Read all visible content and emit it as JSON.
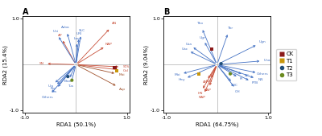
{
  "chart_data": [
    {
      "type": "scatter",
      "title": "A",
      "x_label": "RDA1 (50.1%)",
      "y_label": "RDA2 (15.4%)",
      "xlim": [
        -1.05,
        1.05
      ],
      "ylim": [
        -1.05,
        1.05
      ],
      "xticks": [
        -1.0,
        1.0
      ],
      "yticks": [
        -1.0,
        1.0
      ],
      "arrows": [
        {
          "label": "AN",
          "x": 0.68,
          "y": 0.8,
          "color": "#c8503a"
        },
        {
          "label": "AP",
          "x": -0.28,
          "y": 0.56,
          "color": "#c8503a"
        },
        {
          "label": "NAP",
          "x": 0.58,
          "y": 0.4,
          "color": "#c8503a"
        },
        {
          "label": "SN",
          "x": -0.6,
          "y": 0.02,
          "color": "#c8503a"
        },
        {
          "label": "STS",
          "x": 0.88,
          "y": -0.05,
          "color": "#c8503a"
        },
        {
          "label": "Cal",
          "x": 0.88,
          "y": -0.12,
          "color": "#c8503a"
        },
        {
          "label": "Moi",
          "x": 0.8,
          "y": -0.2,
          "color": "#a0522d"
        },
        {
          "label": "Asp",
          "x": 0.82,
          "y": -0.48,
          "color": "#a0522d"
        },
        {
          "label": "Acba",
          "x": -0.18,
          "y": 0.72,
          "color": "#4472c4"
        },
        {
          "label": "Uni",
          "x": -0.36,
          "y": 0.64,
          "color": "#4472c4"
        },
        {
          "label": "SLC",
          "x": 0.1,
          "y": 0.66,
          "color": "#4472c4"
        },
        {
          "label": "URI",
          "x": 0.06,
          "y": 0.6,
          "color": "#4472c4"
        },
        {
          "label": "Lac",
          "x": 0.02,
          "y": 0.5,
          "color": "#4472c4"
        },
        {
          "label": "Elas",
          "x": -0.14,
          "y": -0.32,
          "color": "#4472c4"
        },
        {
          "label": "Tus",
          "x": -0.1,
          "y": -0.42,
          "color": "#4472c4"
        },
        {
          "label": "Pro",
          "x": -0.4,
          "y": -0.46,
          "color": "#4472c4"
        },
        {
          "label": "Ula",
          "x": -0.44,
          "y": -0.42,
          "color": "#4472c4"
        },
        {
          "label": "Cla",
          "x": -0.38,
          "y": -0.52,
          "color": "#4472c4"
        },
        {
          "label": "Others",
          "x": -0.5,
          "y": -0.64,
          "color": "#4472c4"
        }
      ],
      "series": [
        {
          "name": "CK",
          "x": [
            0.76
          ],
          "y": [
            -0.07
          ],
          "color": "#8b1a1a",
          "marker": "square"
        },
        {
          "name": "T1",
          "x": [
            0.8
          ],
          "y": [
            -0.13
          ],
          "color": "#c8960c",
          "marker": "square"
        },
        {
          "name": "T2",
          "x": [
            -0.16
          ],
          "y": [
            -0.26
          ],
          "color": "#1f4e79",
          "marker": "circle"
        },
        {
          "name": "T3",
          "x": [
            -0.08
          ],
          "y": [
            -0.34
          ],
          "color": "#6a8a1f",
          "marker": "circle"
        }
      ]
    },
    {
      "type": "scatter",
      "title": "B",
      "x_label": "RDA1 (64.75%)",
      "y_label": "RDA2 (9.04%)",
      "xlim": [
        -1.05,
        1.05
      ],
      "ylim": [
        -1.05,
        1.05
      ],
      "xticks": [
        -1.0,
        1.0
      ],
      "yticks": [
        -1.0,
        1.0
      ],
      "legend": "right",
      "arrows": [
        {
          "label": "Tho",
          "x": -0.3,
          "y": 0.8,
          "color": "#4472c4"
        },
        {
          "label": "Thr",
          "x": 0.22,
          "y": 0.7,
          "color": "#4472c4"
        },
        {
          "label": "Ugr",
          "x": -0.26,
          "y": 0.52,
          "color": "#4472c4"
        },
        {
          "label": "Usa",
          "x": -0.5,
          "y": 0.4,
          "color": "#4472c4"
        },
        {
          "label": "Uac",
          "x": -0.56,
          "y": 0.3,
          "color": "#4472c4"
        },
        {
          "label": "Ugn",
          "x": 0.8,
          "y": 0.44,
          "color": "#4472c4"
        },
        {
          "label": "Uha",
          "x": 0.88,
          "y": 0.08,
          "color": "#4472c4"
        },
        {
          "label": "Others",
          "x": 0.8,
          "y": -0.18,
          "color": "#4472c4"
        },
        {
          "label": "NN",
          "x": 0.76,
          "y": -0.3,
          "color": "#4472c4"
        },
        {
          "label": "AC",
          "x": 0.52,
          "y": -0.22,
          "color": "#4472c4"
        },
        {
          "label": "RI",
          "x": 0.42,
          "y": -0.28,
          "color": "#4472c4"
        },
        {
          "label": "SUC",
          "x": 0.3,
          "y": -0.4,
          "color": "#4472c4"
        },
        {
          "label": "OH",
          "x": 0.36,
          "y": -0.52,
          "color": "#4472c4"
        },
        {
          "label": "PTB",
          "x": 0.66,
          "y": -0.36,
          "color": "#4472c4"
        },
        {
          "label": "Hey",
          "x": -0.62,
          "y": -0.3,
          "color": "#4472c4"
        },
        {
          "label": "Moi",
          "x": -0.7,
          "y": -0.2,
          "color": "#4472c4"
        },
        {
          "label": "AN",
          "x": -0.2,
          "y": -0.34,
          "color": "#c8503a"
        },
        {
          "label": "NAP",
          "x": -0.16,
          "y": -0.5,
          "color": "#c8503a"
        },
        {
          "label": "HN",
          "x": -0.3,
          "y": -0.56,
          "color": "#c8503a"
        },
        {
          "label": "NAP",
          "x": -0.26,
          "y": -0.64,
          "color": "#c8503a"
        },
        {
          "label": "SuB",
          "x": -0.13,
          "y": -0.33,
          "color": "#c8503a"
        }
      ],
      "series": [
        {
          "name": "CK",
          "x": [
            -0.1
          ],
          "y": [
            0.34
          ],
          "color": "#8b1a1a",
          "marker": "square"
        },
        {
          "name": "T1",
          "x": [
            -0.36
          ],
          "y": [
            -0.2
          ],
          "color": "#c8960c",
          "marker": "square"
        },
        {
          "name": "T2",
          "x": [
            0.08
          ],
          "y": [
            0.02
          ],
          "color": "#1f4e79",
          "marker": "circle"
        },
        {
          "name": "T3",
          "x": [
            0.26
          ],
          "y": [
            -0.2
          ],
          "color": "#6a8a1f",
          "marker": "circle"
        }
      ]
    }
  ]
}
